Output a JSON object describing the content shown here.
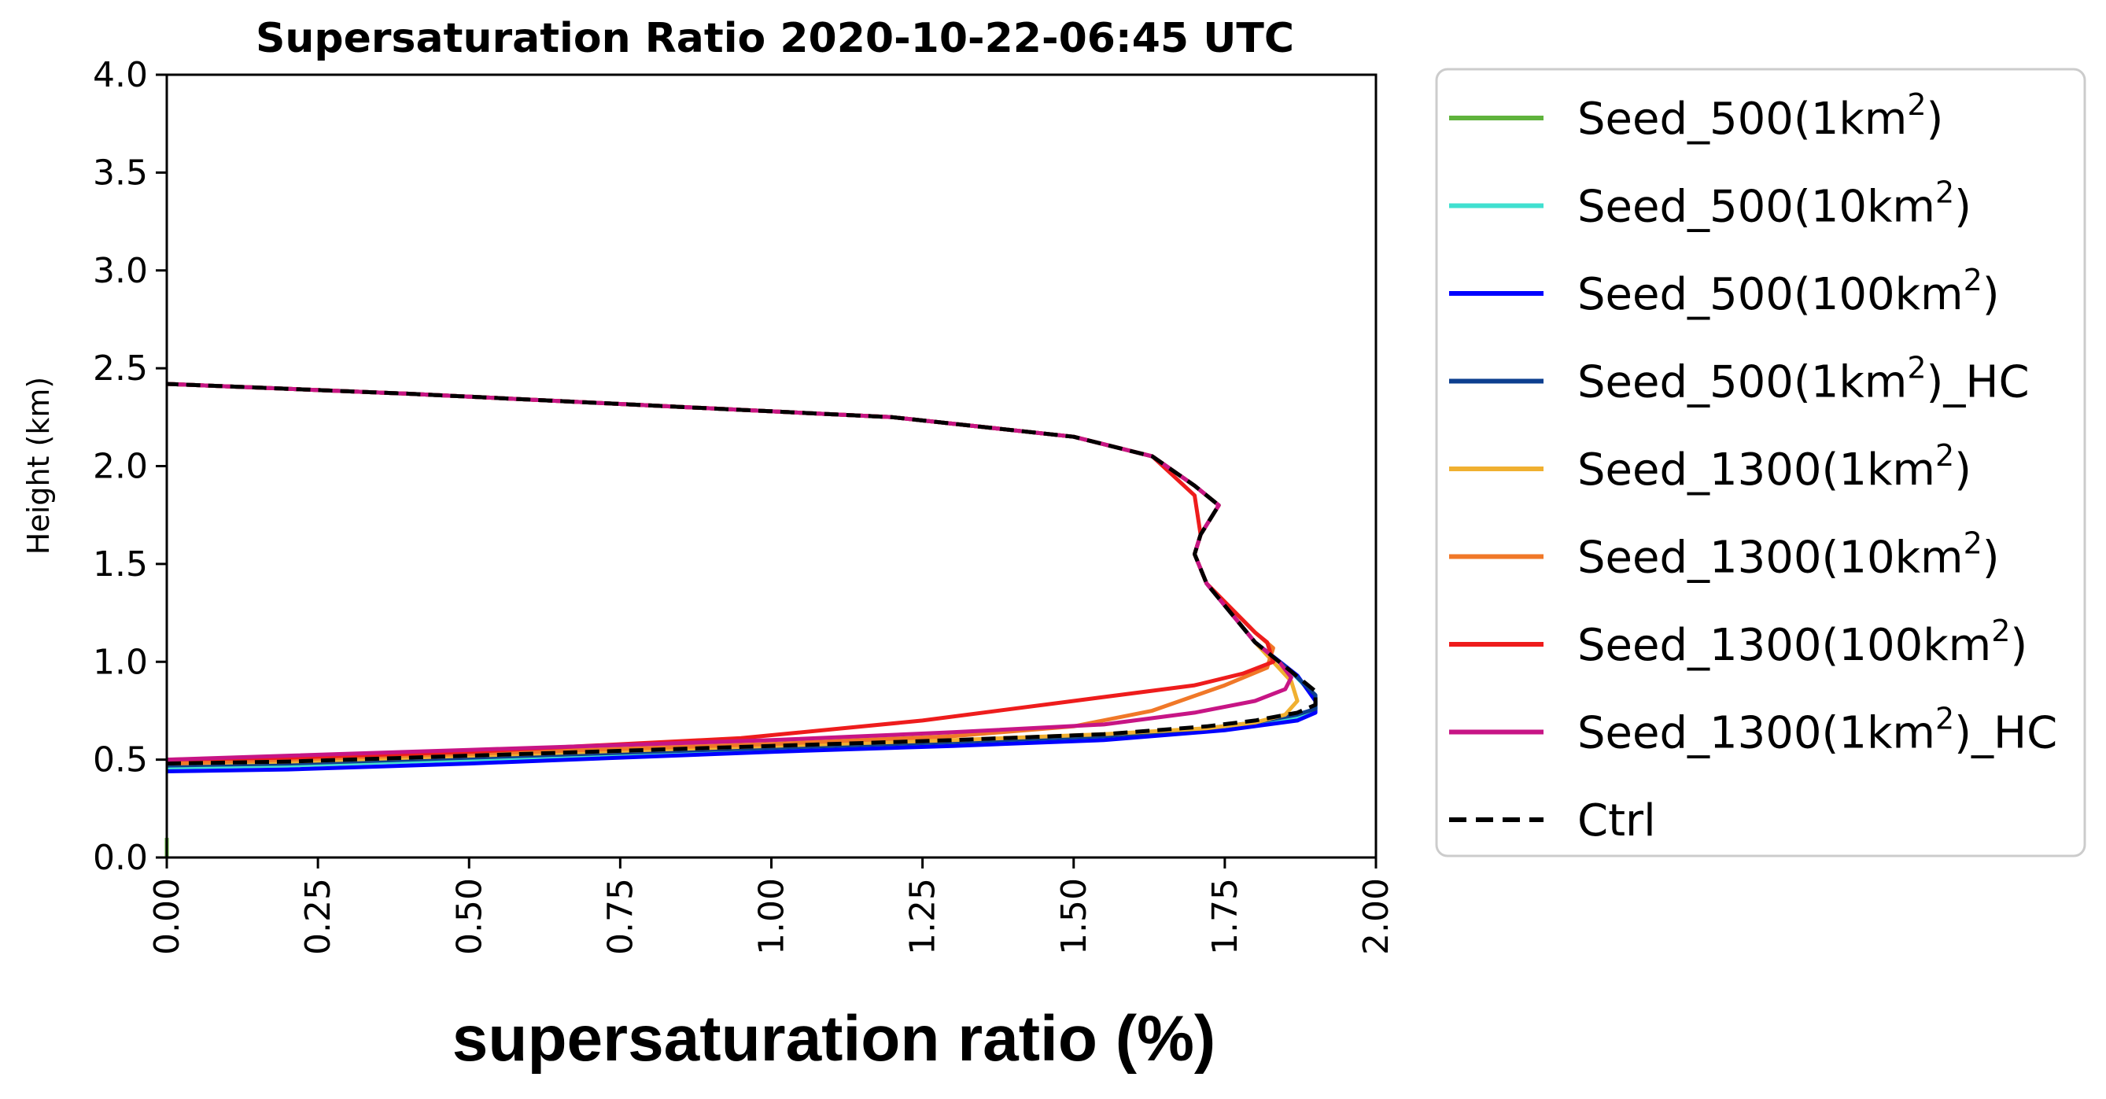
{
  "chart_data": {
    "type": "line",
    "title": "Supersaturation Ratio 2020-10-22-06:45 UTC",
    "xlabel": "supersaturation ratio (%)",
    "ylabel": "Height (km)",
    "xlim": [
      0.0,
      2.0
    ],
    "ylim": [
      0.0,
      4.0
    ],
    "x_ticks": [
      "0.00",
      "0.25",
      "0.50",
      "0.75",
      "1.00",
      "1.25",
      "1.50",
      "1.75",
      "2.00"
    ],
    "y_ticks": [
      "0.0",
      "0.5",
      "1.0",
      "1.5",
      "2.0",
      "2.5",
      "3.0",
      "3.5",
      "4.0"
    ],
    "grid": false,
    "legend_position": "outside-right",
    "series": [
      {
        "name": "Seed_500(1km²)",
        "legend_base": "Seed_500(1km",
        "legend_suffix": ")",
        "color": "#5fb33c",
        "dash": "solid",
        "x": [
          0.0,
          0.0
        ],
        "y": [
          0.0,
          0.1
        ]
      },
      {
        "name": "Seed_500(10km²)",
        "legend_base": "Seed_500(10km",
        "legend_suffix": ")",
        "color": "#40e0d0",
        "dash": "solid",
        "x": [
          0.0,
          0.2,
          0.5,
          1.0,
          1.3,
          1.55,
          1.72,
          1.8,
          1.87,
          1.9,
          1.9,
          1.86,
          1.8,
          1.72,
          1.7,
          1.71,
          1.74,
          1.7,
          1.63,
          1.5,
          1.2,
          0.8,
          0.4,
          0.0
        ],
        "y": [
          0.46,
          0.47,
          0.5,
          0.55,
          0.58,
          0.61,
          0.65,
          0.68,
          0.72,
          0.75,
          0.82,
          0.95,
          1.1,
          1.4,
          1.55,
          1.65,
          1.8,
          1.9,
          2.05,
          2.15,
          2.25,
          2.31,
          2.37,
          2.42
        ]
      },
      {
        "name": "Seed_500(100km²)",
        "legend_base": "Seed_500(100km",
        "legend_suffix": ")",
        "color": "#0000ff",
        "dash": "solid",
        "x": [
          0.0,
          0.2,
          0.5,
          1.0,
          1.3,
          1.55,
          1.75,
          1.87,
          1.9,
          1.9,
          1.87,
          1.8,
          1.72,
          1.7,
          1.71,
          1.74,
          1.7,
          1.63,
          1.5,
          1.2,
          0.8,
          0.4,
          0.0
        ],
        "y": [
          0.44,
          0.45,
          0.48,
          0.54,
          0.57,
          0.6,
          0.65,
          0.7,
          0.74,
          0.8,
          0.93,
          1.1,
          1.4,
          1.55,
          1.65,
          1.8,
          1.9,
          2.05,
          2.15,
          2.25,
          2.31,
          2.37,
          2.42
        ]
      },
      {
        "name": "Seed_500(1km²)_HC",
        "legend_base": "Seed_500(1km",
        "legend_suffix": ")_HC",
        "color": "#0d3f8f",
        "dash": "solid",
        "x": [
          0.0,
          0.2,
          0.5,
          1.0,
          1.3,
          1.55,
          1.72,
          1.8,
          1.87,
          1.9,
          1.9,
          1.86,
          1.8,
          1.72,
          1.7,
          1.71,
          1.74,
          1.7,
          1.63,
          1.5,
          1.2,
          0.8,
          0.4,
          0.0
        ],
        "y": [
          0.47,
          0.48,
          0.51,
          0.56,
          0.59,
          0.62,
          0.66,
          0.69,
          0.73,
          0.76,
          0.83,
          0.95,
          1.1,
          1.4,
          1.55,
          1.65,
          1.8,
          1.9,
          2.05,
          2.15,
          2.25,
          2.31,
          2.37,
          2.42
        ]
      },
      {
        "name": "Seed_1300(1km²)",
        "legend_base": "Seed_1300(1km",
        "legend_suffix": ")",
        "color": "#f0b030",
        "dash": "solid",
        "x": [
          0.0,
          0.2,
          0.5,
          1.0,
          1.3,
          1.55,
          1.72,
          1.8,
          1.85,
          1.87,
          1.86,
          1.8,
          1.72,
          1.7,
          1.71,
          1.74,
          1.7,
          1.63,
          1.5,
          1.2,
          0.8,
          0.4,
          0.0
        ],
        "y": [
          0.48,
          0.49,
          0.52,
          0.57,
          0.6,
          0.63,
          0.66,
          0.69,
          0.73,
          0.8,
          0.9,
          1.1,
          1.4,
          1.55,
          1.65,
          1.8,
          1.9,
          2.05,
          2.15,
          2.25,
          2.31,
          2.37,
          2.42
        ]
      },
      {
        "name": "Seed_1300(10km²)",
        "legend_base": "Seed_1300(10km",
        "legend_suffix": ")",
        "color": "#f07828",
        "dash": "solid",
        "x": [
          0.0,
          0.2,
          0.5,
          1.0,
          1.3,
          1.5,
          1.63,
          1.75,
          1.82,
          1.83,
          1.8,
          1.72,
          1.7,
          1.71,
          1.74,
          1.7,
          1.63,
          1.5,
          1.2,
          0.8,
          0.4,
          0.0
        ],
        "y": [
          0.48,
          0.5,
          0.53,
          0.58,
          0.62,
          0.67,
          0.75,
          0.88,
          0.97,
          1.07,
          1.15,
          1.4,
          1.55,
          1.65,
          1.8,
          1.9,
          2.05,
          2.15,
          2.25,
          2.31,
          2.37,
          2.42
        ]
      },
      {
        "name": "Seed_1300(100km²)",
        "legend_base": "Seed_1300(100km",
        "legend_suffix": ")",
        "color": "#ee1c1c",
        "dash": "solid",
        "x": [
          0.0,
          0.2,
          0.5,
          0.95,
          1.25,
          1.5,
          1.7,
          1.78,
          1.83,
          1.82,
          1.8,
          1.72,
          1.7,
          1.71,
          1.7,
          1.63,
          1.5,
          1.2,
          0.8,
          0.4,
          0.0
        ],
        "y": [
          0.5,
          0.51,
          0.54,
          0.61,
          0.7,
          0.8,
          0.88,
          0.94,
          1.0,
          1.1,
          1.15,
          1.4,
          1.55,
          1.65,
          1.85,
          2.05,
          2.15,
          2.25,
          2.31,
          2.37,
          2.42
        ]
      },
      {
        "name": "Seed_1300(1km²)_HC",
        "legend_base": "Seed_1300(1km",
        "legend_suffix": ")_HC",
        "color": "#c71585",
        "dash": "solid",
        "x": [
          0.0,
          0.2,
          0.5,
          1.0,
          1.3,
          1.55,
          1.7,
          1.8,
          1.85,
          1.86,
          1.84,
          1.8,
          1.72,
          1.7,
          1.71,
          1.74,
          1.7,
          1.63,
          1.5,
          1.2,
          0.8,
          0.4,
          0.0
        ],
        "y": [
          0.5,
          0.52,
          0.55,
          0.6,
          0.64,
          0.68,
          0.74,
          0.8,
          0.86,
          0.92,
          1.0,
          1.1,
          1.4,
          1.55,
          1.65,
          1.8,
          1.9,
          2.05,
          2.15,
          2.25,
          2.31,
          2.37,
          2.42
        ]
      },
      {
        "name": "Ctrl",
        "legend_base": "Ctrl",
        "legend_suffix": "",
        "color": "#000000",
        "dash": "dashed",
        "x": [
          0.0,
          0.2,
          0.5,
          1.0,
          1.3,
          1.55,
          1.72,
          1.8,
          1.87,
          1.9,
          1.9,
          1.86,
          1.8,
          1.72,
          1.7,
          1.71,
          1.74,
          1.7,
          1.63,
          1.5,
          1.2,
          0.8,
          0.4,
          0.0
        ],
        "y": [
          0.48,
          0.49,
          0.52,
          0.57,
          0.6,
          0.63,
          0.67,
          0.7,
          0.74,
          0.78,
          0.85,
          0.95,
          1.1,
          1.4,
          1.55,
          1.65,
          1.8,
          1.9,
          2.05,
          2.15,
          2.25,
          2.31,
          2.37,
          2.42
        ]
      }
    ]
  }
}
